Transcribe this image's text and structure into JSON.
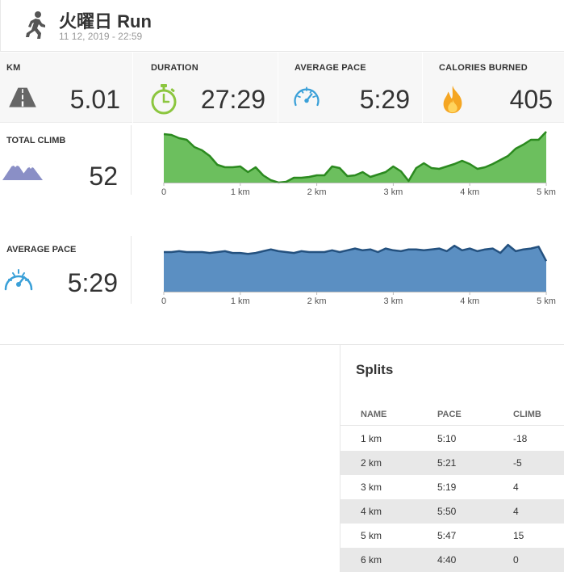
{
  "header": {
    "icon": "running-person-icon",
    "title": "火曜日 Run",
    "date": "11 12, 2019  -  22:59"
  },
  "stats": [
    {
      "label": "KM",
      "value": "5.01",
      "icon": "road-icon"
    },
    {
      "label": "DURATION",
      "value": "27:29",
      "icon": "stopwatch-icon"
    },
    {
      "label": "AVERAGE PACE",
      "value": "5:29",
      "icon": "speedometer-icon"
    },
    {
      "label": "CALORIES BURNED",
      "value": "405",
      "icon": "flame-icon"
    }
  ],
  "climb": {
    "label": "TOTAL CLIMB",
    "value": "52",
    "icon": "mountains-icon"
  },
  "pace": {
    "label": "AVERAGE PACE",
    "value": "5:29",
    "icon": "speedometer-icon"
  },
  "colors": {
    "elevation": "#6cbf5e",
    "elevation_line": "#2b8a1f",
    "pace": "#5b8fc2",
    "pace_line": "#24517f",
    "accent": "#3aa0d8"
  },
  "chart_data": [
    {
      "type": "area",
      "xlim": [
        0,
        5
      ],
      "x_ticks": [
        "0",
        "1 km",
        "2 km",
        "3 km",
        "4 km",
        "5 km"
      ],
      "x": [
        0,
        0.1,
        0.2,
        0.3,
        0.4,
        0.5,
        0.6,
        0.7,
        0.8,
        0.9,
        1.0,
        1.1,
        1.2,
        1.3,
        1.4,
        1.5,
        1.6,
        1.7,
        1.8,
        1.9,
        2.0,
        2.1,
        2.2,
        2.3,
        2.4,
        2.5,
        2.6,
        2.7,
        2.8,
        2.9,
        3.0,
        3.1,
        3.2,
        3.3,
        3.4,
        3.5,
        3.6,
        3.7,
        3.8,
        3.9,
        4.0,
        4.1,
        4.2,
        4.3,
        4.4,
        4.5,
        4.6,
        4.7,
        4.8,
        4.9,
        5.0
      ],
      "y": [
        60,
        59,
        55,
        53,
        44,
        40,
        33,
        22,
        19,
        19,
        20,
        13,
        19,
        9,
        3,
        0,
        1,
        6,
        6,
        7,
        9,
        9,
        20,
        18,
        8,
        9,
        13,
        7,
        10,
        13,
        20,
        14,
        2,
        18,
        24,
        18,
        17,
        20,
        23,
        27,
        23,
        17,
        19,
        23,
        28,
        33,
        42,
        47,
        53,
        53,
        63
      ]
    },
    {
      "type": "area",
      "xlim": [
        0,
        5
      ],
      "x_ticks": [
        "0",
        "1 km",
        "2 km",
        "3 km",
        "4 km",
        "5 km"
      ],
      "x": [
        0,
        0.1,
        0.2,
        0.3,
        0.4,
        0.5,
        0.6,
        0.7,
        0.8,
        0.9,
        1.0,
        1.1,
        1.2,
        1.3,
        1.4,
        1.5,
        1.6,
        1.7,
        1.8,
        1.9,
        2.0,
        2.1,
        2.2,
        2.3,
        2.4,
        2.5,
        2.6,
        2.7,
        2.8,
        2.9,
        3.0,
        3.1,
        3.2,
        3.3,
        3.4,
        3.5,
        3.6,
        3.7,
        3.8,
        3.9,
        4.0,
        4.1,
        4.2,
        4.3,
        4.4,
        4.5,
        4.6,
        4.7,
        4.8,
        4.9,
        5.0
      ],
      "y": [
        44,
        44,
        45,
        44,
        44,
        44,
        43,
        44,
        45,
        43,
        43,
        42,
        43,
        45,
        47,
        45,
        44,
        43,
        45,
        44,
        44,
        44,
        46,
        44,
        46,
        48,
        46,
        47,
        44,
        48,
        46,
        45,
        47,
        47,
        46,
        47,
        48,
        45,
        51,
        46,
        48,
        45,
        47,
        48,
        43,
        52,
        45,
        47,
        48,
        50,
        34
      ]
    }
  ],
  "splits": {
    "heading": "Splits",
    "columns": [
      "NAME",
      "PACE",
      "CLIMB"
    ],
    "rows": [
      {
        "name": "1 km",
        "pace": "5:10",
        "climb": "-18"
      },
      {
        "name": "2 km",
        "pace": "5:21",
        "climb": "-5"
      },
      {
        "name": "3 km",
        "pace": "5:19",
        "climb": "4"
      },
      {
        "name": "4 km",
        "pace": "5:50",
        "climb": "4"
      },
      {
        "name": "5 km",
        "pace": "5:47",
        "climb": "15"
      },
      {
        "name": "6 km",
        "pace": "4:40",
        "climb": "0"
      }
    ]
  }
}
